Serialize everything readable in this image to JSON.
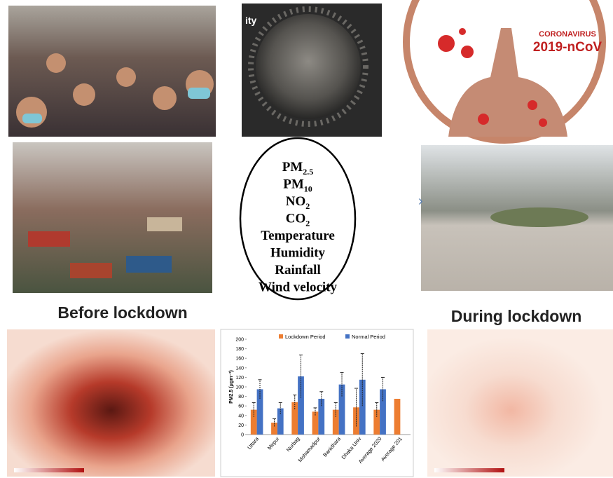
{
  "image_labels": {
    "virus_caption": "ity",
    "corona_top": "CORONAVIRUS",
    "corona_bottom": "2019-nCoV",
    "before": "Before lockdown",
    "during": "During lockdown"
  },
  "parameters": [
    {
      "text": "PM",
      "sub": "2.5"
    },
    {
      "text": "PM",
      "sub": "10"
    },
    {
      "text": "NO",
      "sub": "2"
    },
    {
      "text": "CO",
      "sub": "2"
    },
    {
      "text": "Temperature"
    },
    {
      "text": "Humidity"
    },
    {
      "text": "Rainfall"
    },
    {
      "text": "Wind velocity"
    }
  ],
  "chart_data": {
    "type": "bar",
    "y_label": "PM2.5 (μgm⁻³)",
    "categories": [
      "Uttara",
      "Mirpur",
      "Nurbag",
      "Mohamadpur",
      "Banidhara",
      "Dhaka Univ",
      "Average 2020",
      "Average 201"
    ],
    "series": [
      {
        "name": "Lockdown Period",
        "color": "#ed7d31",
        "values": [
          52,
          25,
          68,
          48,
          52,
          57,
          52,
          75
        ],
        "errors": [
          15,
          8,
          15,
          8,
          15,
          40,
          15,
          null
        ]
      },
      {
        "name": "Normal Period",
        "color": "#4472c4",
        "values": [
          95,
          55,
          122,
          75,
          105,
          115,
          95,
          null
        ],
        "errors": [
          20,
          12,
          45,
          15,
          25,
          55,
          25,
          null
        ]
      }
    ],
    "ylim": [
      0,
      200
    ],
    "yticks": [
      0,
      20,
      40,
      60,
      80,
      100,
      120,
      140,
      160,
      180,
      200
    ]
  }
}
